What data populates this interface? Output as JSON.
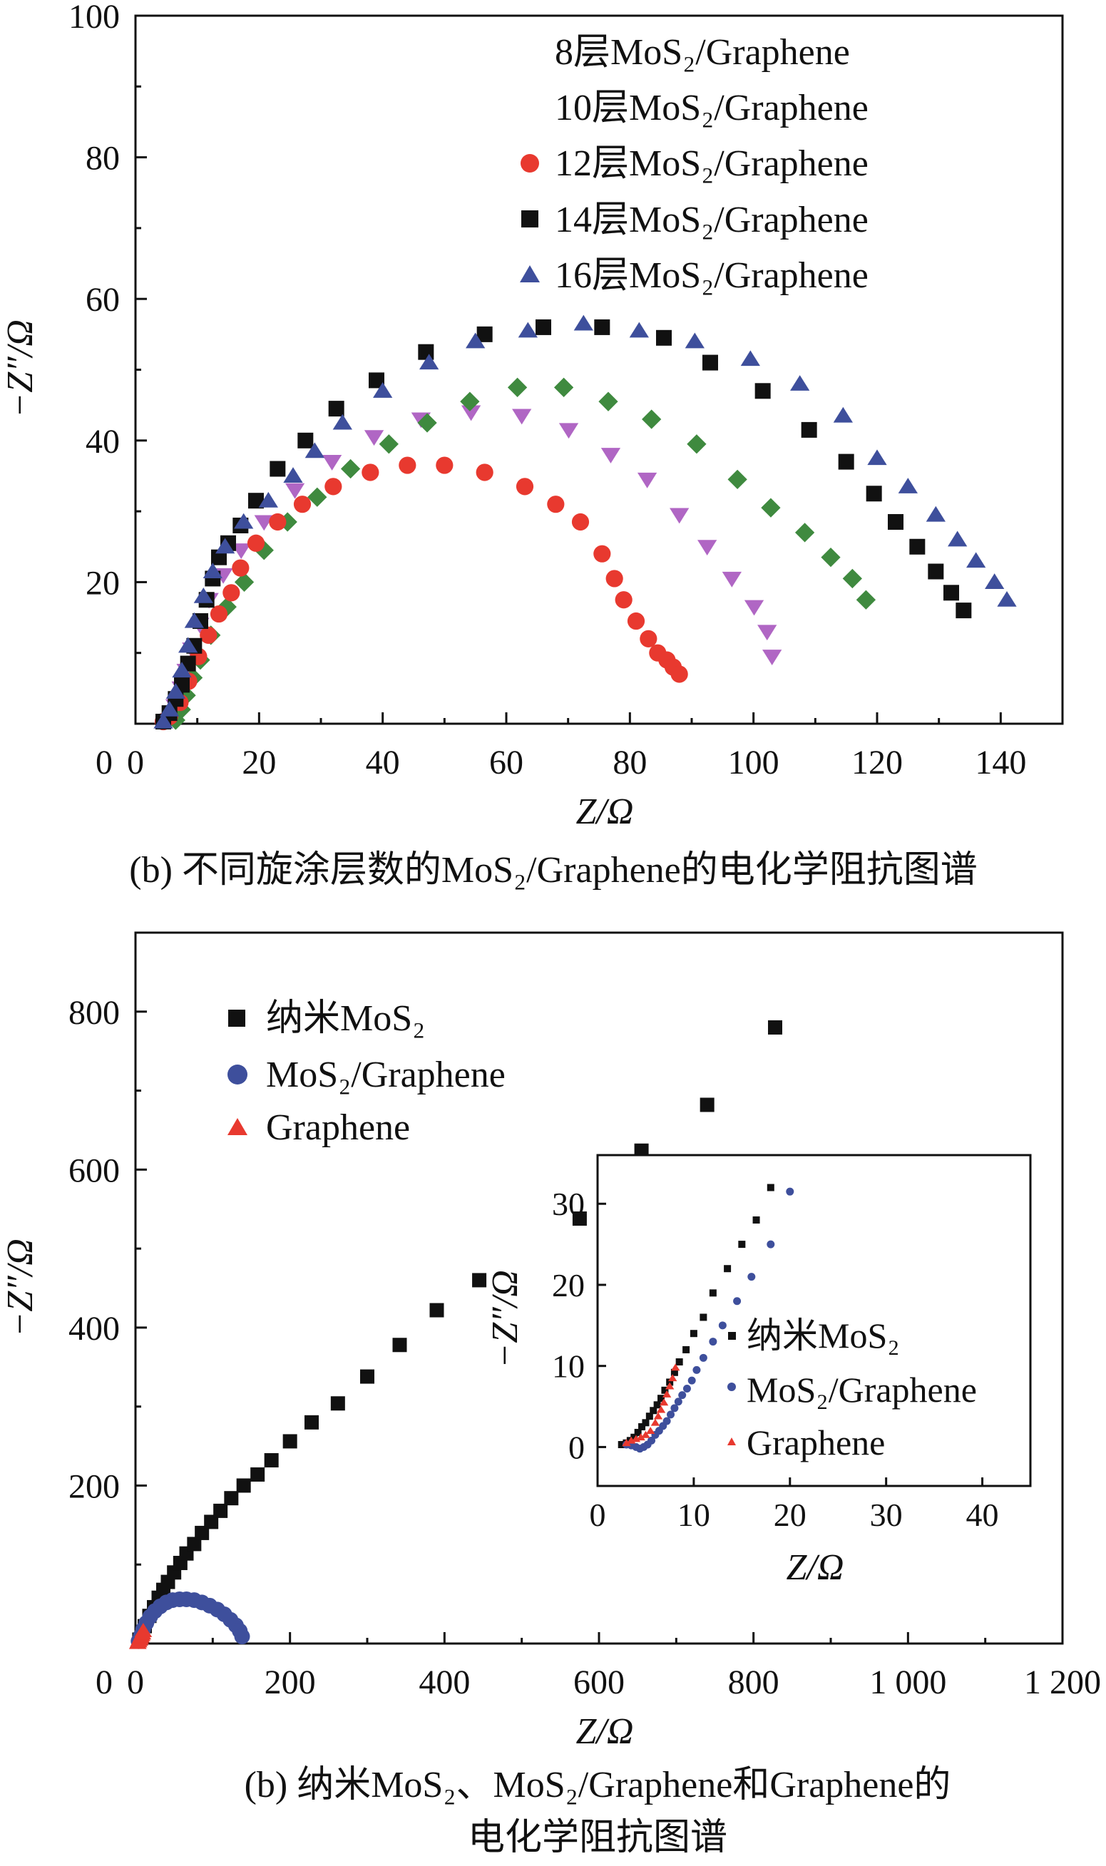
{
  "chart_data": [
    {
      "type": "scatter",
      "id": "top",
      "title": "",
      "caption": "(b) 不同旋涂层数的MoS₂/Graphene的电化学阻抗图谱",
      "xlabel": "Z/Ω",
      "ylabel": "−Z″/Ω",
      "xlim": [
        0,
        150
      ],
      "ylim": [
        0,
        100
      ],
      "xticks": [
        0,
        20,
        40,
        60,
        80,
        100,
        120,
        140
      ],
      "yticks": [
        20,
        40,
        60,
        80,
        100
      ],
      "ytick_zero_label": "0",
      "legend_position": "top-right",
      "legend": [
        {
          "name": "8层MoS₂/Graphene",
          "marker": "triangle-down",
          "color": "#b066c4",
          "show_marker": false
        },
        {
          "name": "10层MoS₂/Graphene",
          "marker": "diamond",
          "color": "#3f8a3f",
          "show_marker": false
        },
        {
          "name": "12层MoS₂/Graphene",
          "marker": "circle",
          "color": "#e8392f",
          "show_marker": true
        },
        {
          "name": "14层MoS₂/Graphene",
          "marker": "square",
          "color": "#111111",
          "show_marker": true
        },
        {
          "name": "16层MoS₂/Graphene",
          "marker": "triangle-up",
          "color": "#3e4f9c",
          "show_marker": true
        }
      ],
      "series": [
        {
          "name": "8层MoS₂/Graphene",
          "marker": "triangle-down",
          "color": "#b066c4",
          "x": [
            5.5,
            6.4,
            7.4,
            8.2,
            9.1,
            10.4,
            11.9,
            14.2,
            17.1,
            20.8,
            25.8,
            31.8,
            38.6,
            46.2,
            54.3,
            62.5,
            70.1,
            76.9,
            82.8,
            88.0,
            92.5,
            96.5,
            100.1,
            102.2,
            103.0
          ],
          "y": [
            0.5,
            2.5,
            5.0,
            7.5,
            10.5,
            14.0,
            17.5,
            21.0,
            24.5,
            28.5,
            33.0,
            37.0,
            40.5,
            43.0,
            44.0,
            43.5,
            41.5,
            38.0,
            34.5,
            29.5,
            25.0,
            20.5,
            16.5,
            13.0,
            9.5
          ]
        },
        {
          "name": "10层MoS₂/Graphene",
          "marker": "diamond",
          "color": "#3f8a3f",
          "x": [
            6.5,
            7.4,
            8.2,
            9.3,
            10.5,
            12.2,
            14.8,
            17.6,
            20.8,
            24.6,
            29.4,
            34.8,
            41.0,
            47.2,
            54.1,
            61.8,
            69.3,
            76.5,
            83.5,
            90.8,
            97.4,
            102.8,
            108.3,
            112.5,
            116.0,
            118.2
          ],
          "y": [
            0.5,
            2.0,
            4.0,
            6.5,
            9.0,
            12.5,
            16.5,
            20.0,
            24.5,
            28.5,
            32.0,
            36.0,
            39.5,
            42.5,
            45.5,
            47.5,
            47.5,
            45.5,
            43.0,
            39.5,
            34.5,
            30.5,
            27.0,
            23.5,
            20.5,
            17.5
          ]
        },
        {
          "name": "12层MoS₂/Graphene",
          "marker": "circle",
          "color": "#e8392f",
          "x": [
            4.5,
            5.5,
            7.2,
            8.6,
            10.2,
            11.8,
            13.5,
            15.5,
            17.0,
            19.5,
            23.0,
            27.0,
            32.0,
            38.0,
            44.0,
            50.0,
            56.5,
            63.0,
            68.0,
            72.0,
            75.5,
            77.5,
            79.0,
            81.0,
            83.0,
            84.5,
            86.0,
            87.0,
            88.0
          ],
          "y": [
            0.3,
            1.0,
            3.0,
            6.0,
            9.5,
            12.5,
            15.5,
            18.5,
            22.0,
            25.5,
            28.5,
            31.0,
            33.5,
            35.5,
            36.5,
            36.5,
            35.5,
            33.5,
            31.0,
            28.5,
            24.0,
            20.5,
            17.5,
            14.5,
            12.0,
            10.0,
            9.0,
            8.0,
            7.0
          ]
        },
        {
          "name": "14层MoS₂/Graphene",
          "marker": "square",
          "color": "#111111",
          "x": [
            4.5,
            5.5,
            6.5,
            7.5,
            8.5,
            9.5,
            10.5,
            11.5,
            12.5,
            13.5,
            15.0,
            17.0,
            19.5,
            23.0,
            27.5,
            32.5,
            39.0,
            47.0,
            56.5,
            66.0,
            75.5,
            85.5,
            93.0,
            101.5,
            109.0,
            115.0,
            119.5,
            123.0,
            126.5,
            129.5,
            132.0,
            134.0
          ],
          "y": [
            0.3,
            1.5,
            3.5,
            5.5,
            8.5,
            11.0,
            14.5,
            17.5,
            20.5,
            23.5,
            25.5,
            28.0,
            31.5,
            36.0,
            40.0,
            44.5,
            48.5,
            52.5,
            55.0,
            56.0,
            56.0,
            54.5,
            51.0,
            47.0,
            41.5,
            37.0,
            32.5,
            28.5,
            25.0,
            21.5,
            18.5,
            16.0
          ]
        },
        {
          "name": "16层MoS₂/Graphene",
          "marker": "triangle-up",
          "color": "#3e4f9c",
          "x": [
            4.5,
            5.5,
            6.5,
            7.5,
            8.5,
            9.5,
            11.0,
            12.5,
            14.5,
            17.5,
            21.5,
            25.5,
            29.0,
            33.5,
            40.0,
            47.5,
            55.0,
            63.5,
            72.5,
            81.5,
            90.5,
            99.5,
            107.5,
            114.5,
            120.0,
            125.0,
            129.5,
            133.0,
            136.0,
            139.0,
            141.0
          ],
          "y": [
            0.3,
            2.0,
            4.5,
            7.5,
            11.0,
            14.5,
            18.0,
            21.5,
            25.0,
            28.5,
            31.5,
            35.0,
            38.5,
            42.5,
            47.0,
            51.0,
            54.0,
            55.5,
            56.5,
            55.5,
            54.0,
            51.5,
            48.0,
            43.5,
            37.5,
            33.5,
            29.5,
            26.0,
            23.0,
            20.0,
            17.5
          ]
        }
      ]
    },
    {
      "type": "scatter",
      "id": "bottom",
      "title": "",
      "caption_line1": "(b) 纳米MoS₂、MoS₂/Graphene和Graphene的",
      "caption_line2": "电化学阻抗图谱",
      "xlabel": "Z/Ω",
      "ylabel": "−Z″/Ω",
      "xlim": [
        0,
        1200
      ],
      "ylim": [
        0,
        900
      ],
      "xticks": [
        0,
        200,
        400,
        600,
        800,
        1000,
        1200
      ],
      "xtick_labels": [
        "0",
        "200",
        "400",
        "600",
        "800",
        "1 000",
        "1 200"
      ],
      "yticks": [
        200,
        400,
        600,
        800
      ],
      "ytick_zero_label": "0",
      "legend_position": "top-left",
      "legend": [
        {
          "name": "纳米MoS₂",
          "marker": "square",
          "color": "#111111"
        },
        {
          "name": "MoS₂/Graphene",
          "marker": "circle",
          "color": "#3e4f9c"
        },
        {
          "name": "Graphene",
          "marker": "triangle-up",
          "color": "#e8392f"
        }
      ],
      "series": [
        {
          "name": "纳米MoS₂",
          "marker": "square",
          "color": "#111111",
          "x": [
            5,
            8,
            12,
            18,
            24,
            30,
            36,
            42,
            50,
            58,
            66,
            76,
            86,
            98,
            110,
            124,
            140,
            158,
            176,
            200,
            228,
            262,
            300,
            342,
            390,
            445,
            575,
            655,
            740,
            828
          ],
          "y": [
            5,
            12,
            22,
            35,
            46,
            58,
            68,
            78,
            90,
            102,
            114,
            126,
            140,
            154,
            168,
            184,
            200,
            214,
            232,
            256,
            280,
            304,
            338,
            378,
            422,
            460,
            538,
            624,
            682,
            780
          ]
        },
        {
          "name": "MoS₂/Graphene",
          "marker": "circle",
          "color": "#3e4f9c",
          "x": [
            4,
            7,
            10,
            14,
            19,
            25,
            32,
            40,
            48,
            57,
            66,
            76,
            86,
            96,
            106,
            115,
            123,
            130,
            135,
            138
          ],
          "y": [
            3,
            10,
            18,
            26,
            34,
            41,
            47,
            52,
            55,
            56,
            56,
            55,
            52,
            48,
            43,
            37,
            30,
            23,
            16,
            9
          ]
        },
        {
          "name": "Graphene",
          "marker": "triangle-up",
          "color": "#e8392f",
          "x": [
            3,
            4,
            5,
            6,
            7,
            8,
            9,
            10
          ],
          "y": [
            1,
            3,
            5,
            7,
            9,
            11,
            13,
            16
          ]
        }
      ],
      "inset": {
        "xlabel": "Z/Ω",
        "ylabel": "−Z″/Ω",
        "xlim": [
          0,
          45
        ],
        "ylim": [
          -4.8,
          36
        ],
        "xticks": [
          0,
          10,
          20,
          30,
          40
        ],
        "yticks": [
          0,
          10,
          20,
          30
        ],
        "legend_position": "right",
        "legend": [
          {
            "name": "纳米MoS₂",
            "marker": "square",
            "color": "#111111"
          },
          {
            "name": "MoS₂/Graphene",
            "marker": "circle",
            "color": "#3e4f9c"
          },
          {
            "name": "Graphene",
            "marker": "triangle-up",
            "color": "#e8392f"
          }
        ],
        "series": [
          {
            "name": "纳米MoS₂",
            "marker": "square",
            "color": "#111111",
            "x": [
              2.5,
              3.0,
              3.4,
              3.8,
              4.2,
              4.6,
              5.0,
              5.4,
              5.8,
              6.2,
              6.6,
              7.0,
              7.5,
              8.0,
              8.5,
              9.2,
              10.0,
              11.0,
              12.0,
              13.5,
              15.0,
              16.5,
              18.0
            ],
            "y": [
              0.3,
              0.5,
              0.8,
              1.2,
              1.8,
              2.5,
              3.0,
              3.8,
              4.5,
              5.2,
              6.0,
              7.0,
              8.0,
              9.2,
              10.5,
              12.0,
              14.0,
              16.0,
              19.0,
              22.0,
              25.0,
              28.0,
              32.0
            ]
          },
          {
            "name": "MoS₂/Graphene",
            "marker": "circle",
            "color": "#3e4f9c",
            "x": [
              3.0,
              3.5,
              4.0,
              4.4,
              4.8,
              5.2,
              5.6,
              6.0,
              6.4,
              6.8,
              7.2,
              7.6,
              8.0,
              8.4,
              8.8,
              9.3,
              9.8,
              10.3,
              11.0,
              12.0,
              13.0,
              14.5,
              16.0,
              18.0,
              20.0
            ],
            "y": [
              0.3,
              0.2,
              0.0,
              -0.2,
              0.0,
              0.3,
              0.8,
              1.5,
              2.0,
              2.6,
              3.2,
              4.0,
              4.8,
              5.6,
              6.4,
              7.2,
              8.2,
              9.5,
              11.0,
              13.0,
              15.0,
              18.0,
              21.0,
              25.0,
              31.5
            ]
          },
          {
            "name": "Graphene",
            "marker": "triangle-up",
            "color": "#e8392f",
            "x": [
              3.0,
              3.5,
              4.0,
              4.5,
              5.0,
              5.5,
              6.0,
              6.3,
              6.6,
              6.9,
              7.2,
              7.5,
              7.8,
              8.1
            ],
            "y": [
              0.5,
              0.8,
              1.0,
              1.2,
              1.5,
              2.0,
              3.0,
              3.8,
              4.6,
              5.5,
              6.5,
              7.5,
              8.5,
              9.8
            ]
          }
        ]
      }
    }
  ]
}
